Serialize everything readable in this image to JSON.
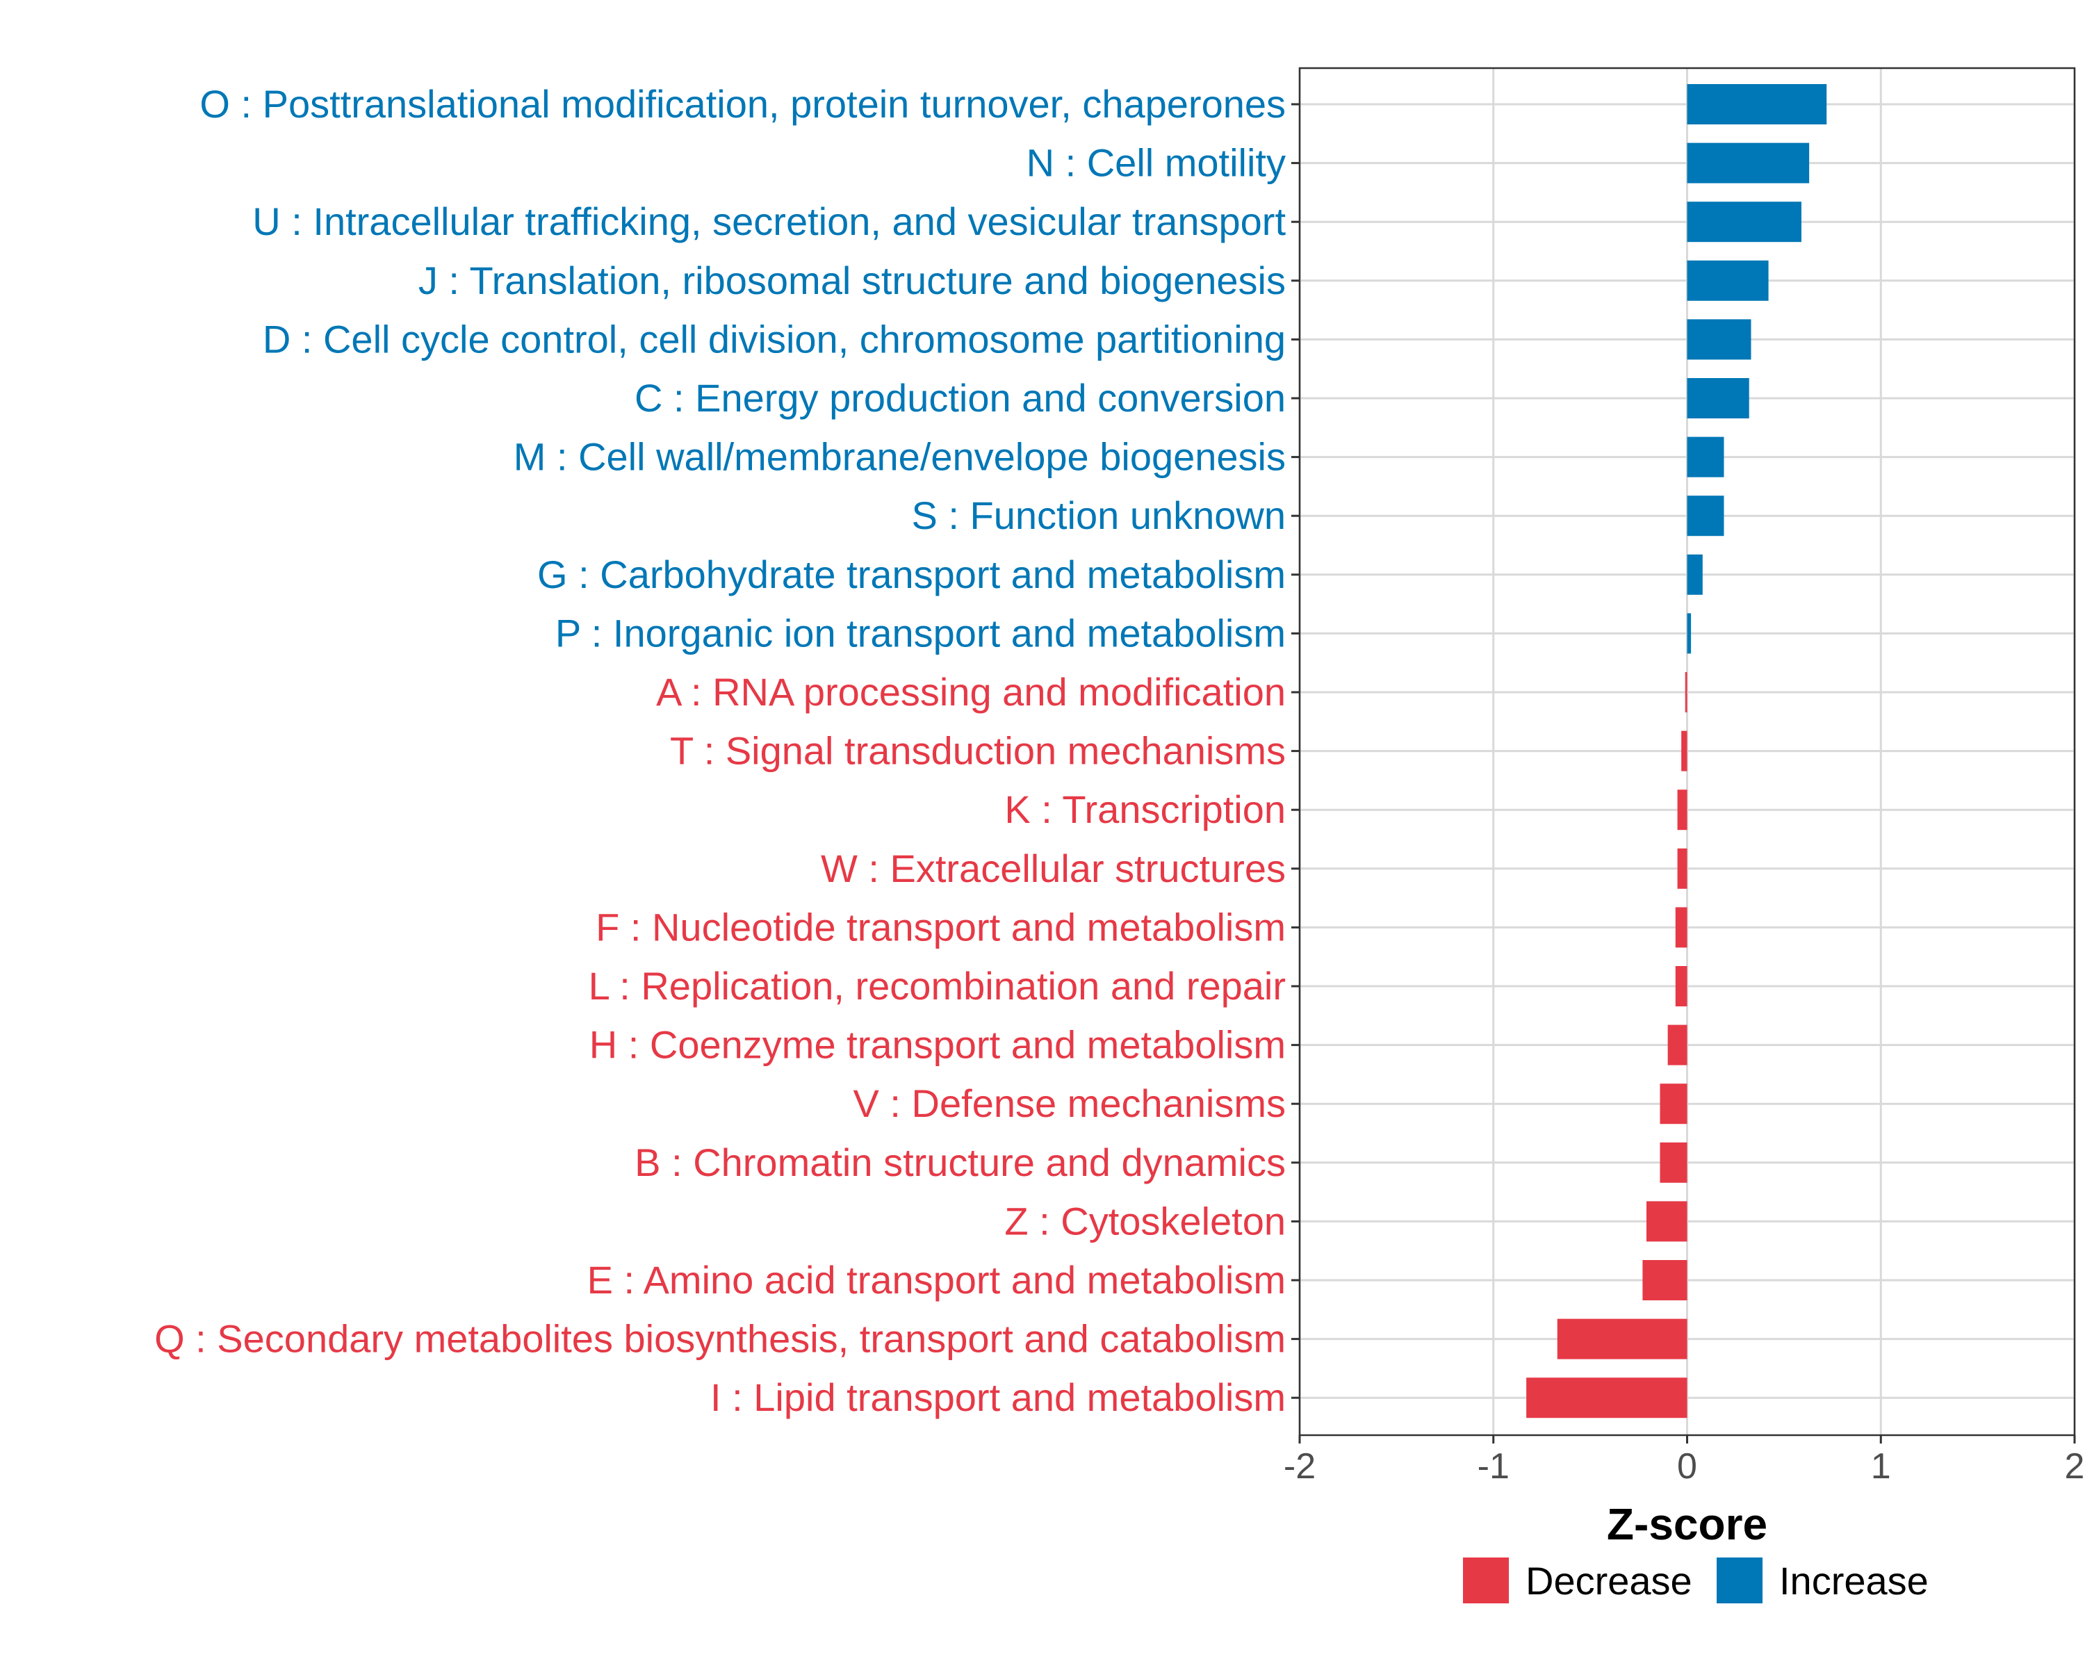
{
  "chart_data": {
    "type": "bar",
    "orientation": "horizontal",
    "title": "",
    "xlabel": "Z-score",
    "ylabel": "",
    "xlim": [
      -2,
      2
    ],
    "xticks": [
      "-2",
      "-1",
      "0",
      "1",
      "2"
    ],
    "xtick_values": [
      -2,
      -1,
      0,
      1,
      2
    ],
    "grid": true,
    "legend_position": "bottom",
    "colors": {
      "Decrease": "#e63946",
      "Increase": "#0077b6"
    },
    "legend": [
      {
        "name": "Decrease",
        "color": "#e63946"
      },
      {
        "name": "Increase",
        "color": "#0077b6"
      }
    ],
    "categories": [
      "O : Posttranslational modification, protein turnover, chaperones",
      "N : Cell motility",
      "U : Intracellular trafficking, secretion, and vesicular transport",
      "J : Translation, ribosomal structure and biogenesis",
      "D : Cell cycle control, cell division, chromosome partitioning",
      "C : Energy production and conversion",
      "M : Cell wall/membrane/envelope biogenesis",
      "S : Function unknown",
      "G : Carbohydrate transport and metabolism",
      "P : Inorganic ion transport and metabolism",
      "A : RNA processing and modification",
      "T : Signal transduction mechanisms",
      "K : Transcription",
      "W : Extracellular structures",
      "F : Nucleotide transport and metabolism",
      "L : Replication, recombination and repair",
      "H : Coenzyme transport and metabolism",
      "V : Defense mechanisms",
      "B : Chromatin structure and dynamics",
      "Z : Cytoskeleton",
      "E : Amino acid transport and metabolism",
      "Q : Secondary metabolites biosynthesis, transport and catabolism",
      "I : Lipid transport and metabolism"
    ],
    "values": [
      0.72,
      0.63,
      0.59,
      0.42,
      0.33,
      0.32,
      0.19,
      0.19,
      0.08,
      0.02,
      -0.01,
      -0.03,
      -0.05,
      -0.05,
      -0.06,
      -0.06,
      -0.1,
      -0.14,
      -0.14,
      -0.21,
      -0.23,
      -0.67,
      -0.83
    ],
    "groups": [
      "Increase",
      "Increase",
      "Increase",
      "Increase",
      "Increase",
      "Increase",
      "Increase",
      "Increase",
      "Increase",
      "Increase",
      "Decrease",
      "Decrease",
      "Decrease",
      "Decrease",
      "Decrease",
      "Decrease",
      "Decrease",
      "Decrease",
      "Decrease",
      "Decrease",
      "Decrease",
      "Decrease",
      "Decrease"
    ]
  }
}
